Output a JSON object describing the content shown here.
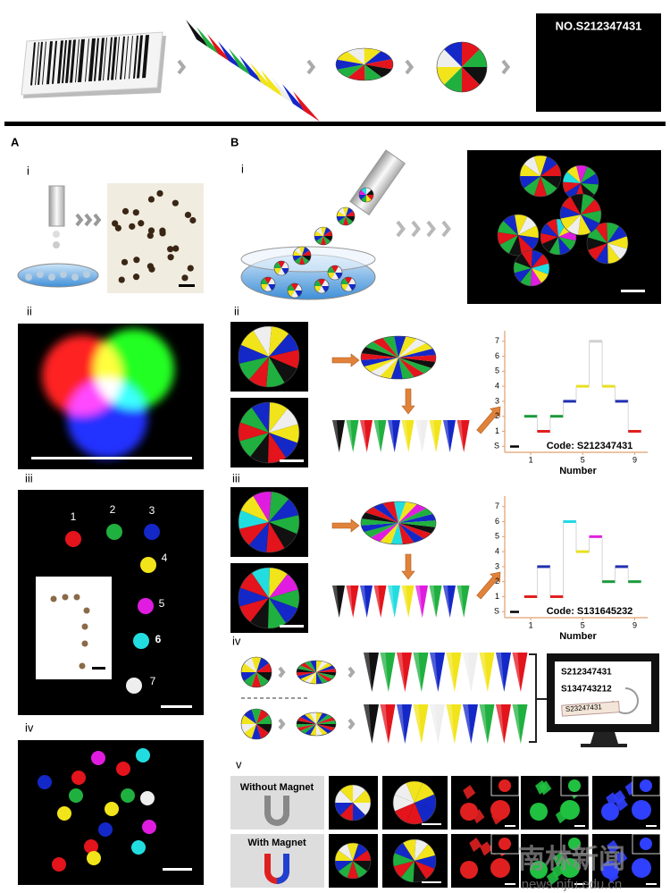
{
  "banner": {
    "label": "NO.S212347431"
  },
  "panels": {
    "a": "A",
    "b": "B"
  },
  "sublabels": {
    "a_i": "i",
    "a_ii": "ii",
    "a_iii": "iii",
    "a_iv": "iv",
    "b_i": "i",
    "b_ii": "ii",
    "b_iii": "iii",
    "b_iv": "iv",
    "b_v": "v"
  },
  "dot_labels": [
    "1",
    "2",
    "3",
    "4",
    "5",
    "6",
    "7"
  ],
  "chart_data": [
    {
      "type": "step",
      "annotation": "Code: S212347431",
      "xlabel": "Number",
      "x": [
        1,
        2,
        3,
        4,
        5,
        6,
        7,
        8,
        9
      ],
      "values": [
        2,
        1,
        2,
        3,
        4,
        7,
        4,
        3,
        1
      ],
      "colors": [
        "#1a9a3a",
        "#e02020",
        "#1a9a3a",
        "#2030b0",
        "#e8e020",
        "#d0d0d0",
        "#e8e020",
        "#2030b0",
        "#e02020"
      ],
      "xlim": [
        -1,
        10
      ],
      "ylim": [
        -0.4,
        7.7
      ],
      "xticks": [
        1,
        5,
        9
      ],
      "yticks": [
        {
          "value": 0,
          "label": "S"
        },
        1,
        2,
        3,
        4,
        5,
        6,
        7
      ]
    },
    {
      "type": "step",
      "annotation": "Code: S131645232",
      "xlabel": "Number",
      "x": [
        1,
        2,
        3,
        4,
        5,
        6,
        7,
        8,
        9
      ],
      "values": [
        1,
        3,
        1,
        6,
        4,
        5,
        2,
        3,
        2
      ],
      "colors": [
        "#e02020",
        "#2030b0",
        "#e02020",
        "#20d8e8",
        "#e8e020",
        "#e020e0",
        "#1a9a3a",
        "#2030b0",
        "#1a9a3a"
      ],
      "xlim": [
        -1,
        10
      ],
      "ylim": [
        -0.4,
        7.7
      ],
      "xticks": [
        1,
        5,
        9
      ],
      "yticks": [
        {
          "value": 0,
          "label": "S"
        },
        1,
        2,
        3,
        4,
        5,
        6,
        7
      ]
    }
  ],
  "sequences": {
    "codes": [
      "S212347431",
      "S134743212"
    ],
    "tag": "S23247431"
  },
  "magnet": {
    "without": "Without Magnet",
    "with": "With Magnet"
  },
  "watermark": {
    "title": "南林新闻",
    "url": "news.njfu.edu.cn"
  }
}
